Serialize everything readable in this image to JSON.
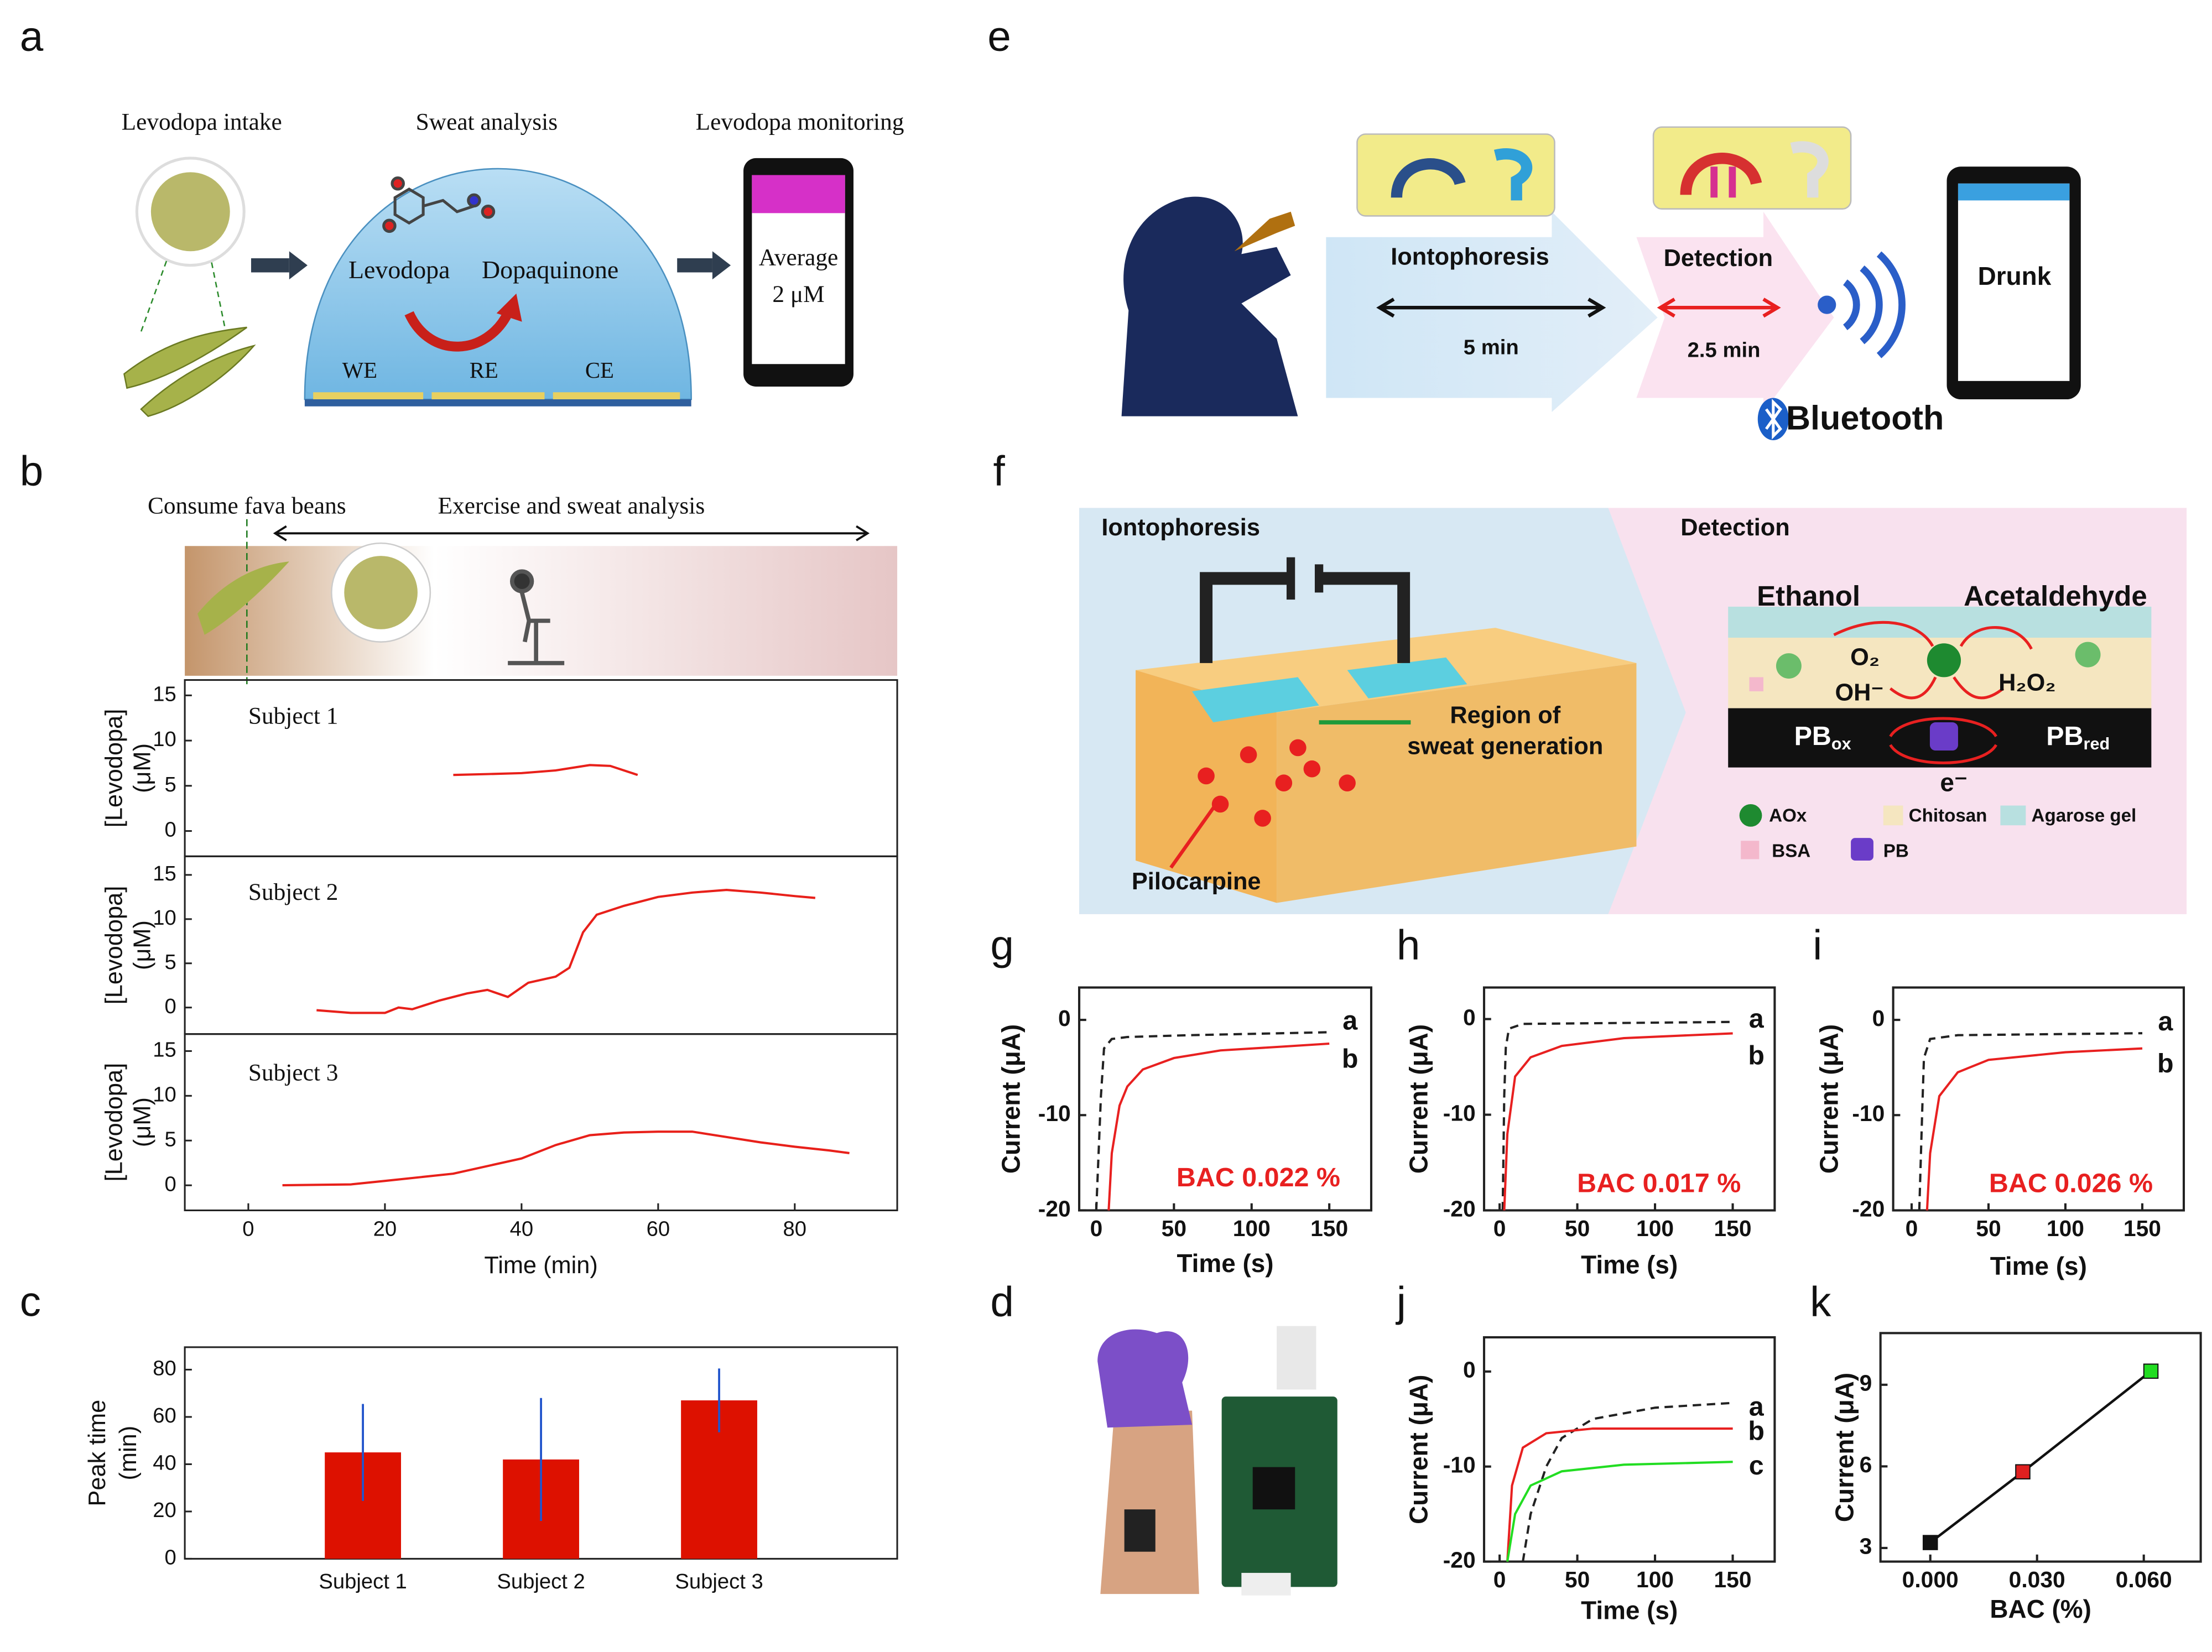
{
  "panel_labels": [
    "a",
    "b",
    "c",
    "d",
    "e",
    "f",
    "g",
    "h",
    "i",
    "j",
    "k"
  ],
  "panel_a": {
    "steps": [
      "Levodopa intake",
      "Sweat analysis",
      "Levodopa monitoring"
    ],
    "reactant": "Levodopa",
    "product": "Dopaquinone",
    "electrodes": [
      "WE",
      "RE",
      "CE"
    ],
    "phone": [
      "Average",
      "2 μM"
    ]
  },
  "panel_b": {
    "event": "Consume fava beans",
    "phase": "Exercise and sweat analysis"
  },
  "panel_e": {
    "step1": "Iontophoresis",
    "time1": "5 min",
    "step2": "Detection",
    "time2": "2.5 min",
    "screen": "Drunk",
    "wireless": "Bluetooth"
  },
  "panel_f": {
    "left_title": "Iontophoresis",
    "right_title": "Detection",
    "region": [
      "Region of",
      "sweat generation"
    ],
    "drug": "Pilocarpine",
    "substrate": "Ethanol",
    "product": "Acetaldehyde",
    "o2": "O₂",
    "h2o2": "H₂O₂",
    "oh": "OH⁻",
    "pb_ox": {
      "base": "PB",
      "sub": "ox"
    },
    "pb_red": {
      "base": "PB",
      "sub": "red"
    },
    "electron": "e⁻",
    "legend": [
      "AOx",
      "Chitosan",
      "Agarose gel",
      "BSA",
      "PB"
    ]
  },
  "chart_data": [
    {
      "type": "line",
      "annotation": "Subject 1",
      "x": [
        30,
        35,
        40,
        45,
        50,
        53,
        57
      ],
      "values": [
        6.2,
        6.3,
        6.4,
        6.7,
        7.3,
        7.2,
        6.2
      ],
      "color": "#e8201a",
      "xlim": [
        -9.3,
        95
      ],
      "ylim": [
        -2.8,
        16.7
      ],
      "yticks": [
        0,
        5,
        10,
        15
      ],
      "ylabel": [
        "[Levodopa]",
        "(μM)"
      ]
    },
    {
      "type": "line",
      "annotation": "Subject 2",
      "x": [
        10,
        15,
        20,
        22,
        24,
        28,
        32,
        35,
        38,
        41,
        45,
        47,
        49,
        51,
        55,
        60,
        65,
        70,
        75,
        80,
        83
      ],
      "values": [
        -0.3,
        -0.6,
        -0.6,
        0,
        -0.2,
        0.8,
        1.6,
        2,
        1.2,
        2.8,
        3.5,
        4.5,
        8.5,
        10.5,
        11.5,
        12.5,
        13,
        13.3,
        13,
        12.6,
        12.4
      ],
      "color": "#e8201a",
      "xlim": [
        -9.3,
        95
      ],
      "ylim": [
        -3,
        17.1
      ],
      "yticks": [
        0,
        5,
        10,
        15
      ],
      "ylabel": [
        "[Levodopa]",
        "(μM)"
      ]
    },
    {
      "type": "line",
      "annotation": "Subject 3",
      "x": [
        5,
        15,
        20,
        30,
        40,
        45,
        50,
        55,
        60,
        65,
        70,
        75,
        80,
        85,
        88
      ],
      "values": [
        0,
        0.1,
        0.5,
        1.3,
        3,
        4.5,
        5.6,
        5.9,
        6,
        6,
        5.4,
        4.8,
        4.3,
        3.9,
        3.6
      ],
      "color": "#e8201a",
      "xlim": [
        -9.3,
        95
      ],
      "ylim": [
        -2.8,
        16.9
      ],
      "xticks": [
        0,
        20,
        40,
        60,
        80
      ],
      "yticks": [
        0,
        5,
        10,
        15
      ],
      "xlabel": "Time (min)",
      "ylabel": [
        "[Levodopa]",
        "(μM)"
      ]
    },
    {
      "type": "bar",
      "categories": [
        "Subject 1",
        "Subject 2",
        "Subject 3"
      ],
      "values": [
        45,
        42,
        67
      ],
      "errors": [
        20.5,
        26,
        13.5
      ],
      "color": "#dd1100",
      "error_color": "#2255cc",
      "ylim": [
        0,
        89.5
      ],
      "yticks": [
        0,
        20,
        40,
        60,
        80
      ],
      "ylabel": [
        "Peak time",
        "(min)"
      ]
    },
    {
      "type": "line",
      "annotation": "BAC 0.022 %",
      "series": [
        {
          "name": "a",
          "color": "#222222",
          "linestyle": "dashed",
          "x": [
            0,
            3,
            5,
            10,
            20,
            60,
            150
          ],
          "values": [
            -20,
            -8,
            -3,
            -2,
            -1.8,
            -1.6,
            -1.3
          ]
        },
        {
          "name": "b",
          "color": "#e82020",
          "linestyle": "solid",
          "x": [
            8,
            10,
            15,
            20,
            30,
            50,
            80,
            120,
            150
          ],
          "values": [
            -20,
            -14,
            -9,
            -7,
            -5.2,
            -4,
            -3.2,
            -2.8,
            -2.5
          ]
        }
      ],
      "xlim": [
        -11,
        177
      ],
      "ylim": [
        -20,
        3.4
      ],
      "xticks": [
        0,
        50,
        100,
        150
      ],
      "yticks": [
        -20,
        -10,
        0
      ],
      "xlabel": "Time (s)",
      "ylabel": "Current (μA)"
    },
    {
      "type": "line",
      "annotation": "BAC 0.017 %",
      "series": [
        {
          "name": "a",
          "color": "#222222",
          "linestyle": "dashed",
          "x": [
            2,
            3,
            4,
            6,
            15,
            150
          ],
          "values": [
            -20,
            -8,
            -3,
            -1,
            -0.5,
            -0.3
          ]
        },
        {
          "name": "b",
          "color": "#e82020",
          "linestyle": "solid",
          "x": [
            3,
            5,
            10,
            20,
            40,
            80,
            150
          ],
          "values": [
            -20,
            -12,
            -6,
            -4,
            -2.8,
            -2,
            -1.5
          ]
        }
      ],
      "xlim": [
        -10,
        177
      ],
      "ylim": [
        -20,
        3.3
      ],
      "xticks": [
        0,
        50,
        100,
        150
      ],
      "yticks": [
        -20,
        -10,
        0
      ],
      "xlabel": "Time (s)",
      "ylabel": "Current (μA)"
    },
    {
      "type": "line",
      "annotation": "BAC 0.026 %",
      "series": [
        {
          "name": "a",
          "color": "#222222",
          "linestyle": "dashed",
          "x": [
            5,
            7,
            8,
            12,
            30,
            150
          ],
          "values": [
            -20,
            -9,
            -4,
            -2,
            -1.6,
            -1.4
          ]
        },
        {
          "name": "b",
          "color": "#e82020",
          "linestyle": "solid",
          "x": [
            10,
            12,
            18,
            30,
            50,
            100,
            150
          ],
          "values": [
            -20,
            -14,
            -8,
            -5.5,
            -4.2,
            -3.4,
            -3
          ]
        }
      ],
      "xlim": [
        -12,
        177
      ],
      "ylim": [
        -20,
        3.4
      ],
      "xticks": [
        0,
        50,
        100,
        150
      ],
      "yticks": [
        -20,
        -10,
        0
      ],
      "xlabel": "Time (s)",
      "ylabel": "Current (μA)"
    },
    {
      "type": "line",
      "series": [
        {
          "name": "a",
          "color": "#222222",
          "linestyle": "dashed",
          "x": [
            15,
            20,
            30,
            40,
            60,
            100,
            150
          ],
          "values": [
            -20,
            -15,
            -10,
            -7,
            -5,
            -3.8,
            -3.3
          ]
        },
        {
          "name": "b",
          "color": "#e82020",
          "linestyle": "solid",
          "x": [
            5,
            8,
            15,
            30,
            60,
            150
          ],
          "values": [
            -20,
            -12,
            -8,
            -6.5,
            -6,
            -6
          ]
        },
        {
          "name": "c",
          "color": "#22dd22",
          "linestyle": "solid",
          "x": [
            5,
            10,
            20,
            40,
            80,
            150
          ],
          "values": [
            -20,
            -15,
            -12,
            -10.5,
            -9.8,
            -9.5
          ]
        }
      ],
      "xlim": [
        -10,
        177
      ],
      "ylim": [
        -20,
        3.6
      ],
      "xticks": [
        0,
        50,
        100,
        150
      ],
      "yticks": [
        -20,
        -10,
        0
      ],
      "xlabel": "Time (s)",
      "ylabel": "Current (μA)"
    },
    {
      "type": "scatter",
      "x": [
        0,
        0.026,
        0.062
      ],
      "values": [
        3.2,
        5.8,
        9.5
      ],
      "colors": [
        "#111111",
        "#e02020",
        "#22dd22"
      ],
      "fit_line": true,
      "xlim": [
        -0.014,
        0.076
      ],
      "ylim": [
        2.5,
        10.9
      ],
      "xticks": [
        {
          "value": 0,
          "label": "0.000"
        },
        {
          "value": 0.03,
          "label": "0.030"
        },
        {
          "value": 0.06,
          "label": "0.060"
        }
      ],
      "yticks": [
        3,
        6,
        9
      ],
      "xlabel": "BAC (%)",
      "ylabel": "Current (μA)"
    }
  ]
}
